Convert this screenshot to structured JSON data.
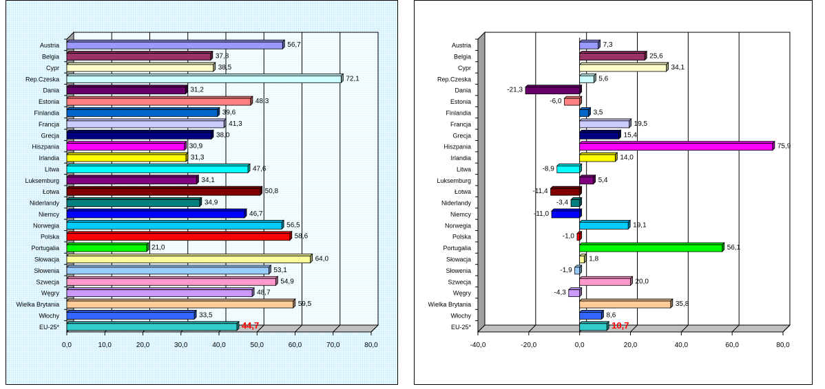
{
  "chart_data": [
    {
      "type": "bar",
      "orientation": "horizontal",
      "style": "3d",
      "categories": [
        "Austria",
        "Belgia",
        "Cypr",
        "Rep.Czeska",
        "Dania",
        "Estonia",
        "Finlandia",
        "Francja",
        "Grecja",
        "Hiszpania",
        "Irlandia",
        "Litwa",
        "Luksemburg",
        "Łotwa",
        "Niderlandy",
        "Niemcy",
        "Norwegia",
        "Polska",
        "Portugalia",
        "Słowacja",
        "Słowenia",
        "Szwecja",
        "Węgry",
        "Wielka Brytania",
        "Włochy",
        "EU-25*"
      ],
      "values": [
        56.7,
        37.8,
        38.5,
        72.1,
        31.2,
        48.3,
        39.6,
        41.3,
        38.0,
        30.9,
        31.3,
        47.6,
        34.1,
        50.8,
        34.9,
        46.7,
        56.5,
        58.6,
        21.0,
        64.0,
        53.1,
        54.9,
        48.7,
        59.5,
        33.5,
        44.7
      ],
      "value_labels": [
        "56,7",
        "37,8",
        "38,5",
        "72,1",
        "31,2",
        "48,3",
        "39,6",
        "41,3",
        "38,0",
        "30,9",
        "31,3",
        "47,6",
        "34,1",
        "50,8",
        "34,9",
        "46,7",
        "56,5",
        "58,6",
        "21,0",
        "64,0",
        "53,1",
        "54,9",
        "48,7",
        "59,5",
        "33,5",
        "44,7"
      ],
      "xlim": [
        0,
        80
      ],
      "xticks": [
        "0,0",
        "10,0",
        "20,0",
        "30,0",
        "40,0",
        "50,0",
        "60,0",
        "70,0",
        "80,0"
      ],
      "grid": true,
      "highlight_category": "EU-25*",
      "highlight_color": "#ff0000"
    },
    {
      "type": "bar",
      "orientation": "horizontal",
      "style": "3d",
      "categories": [
        "Austria",
        "Belgia",
        "Cypr",
        "Rep.Czeska",
        "Dania",
        "Estonia",
        "Finlandia",
        "Francja",
        "Grecja",
        "Hiszpania",
        "Irlandia",
        "Litwa",
        "Luksemburg",
        "Łotwa",
        "Niderlandy",
        "Niemcy",
        "Norwegia",
        "Polska",
        "Portugalia",
        "Słowacja",
        "Słowenia",
        "Szwecja",
        "Węgry",
        "Wielka Brytania",
        "Włochy",
        "EU-25*"
      ],
      "values": [
        7.3,
        25.6,
        34.1,
        5.6,
        -21.3,
        -6.0,
        3.5,
        19.5,
        15.4,
        75.9,
        14.0,
        -8.9,
        5.4,
        -11.4,
        -3.4,
        -11.0,
        19.1,
        -1.0,
        56.1,
        1.8,
        -1.9,
        20.0,
        -4.3,
        35.8,
        8.6,
        10.7
      ],
      "value_labels": [
        "7,3",
        "25,6",
        "34,1",
        "5,6",
        "-21,3",
        "-6,0",
        "3,5",
        "19,5",
        "15,4",
        "75,9",
        "14,0",
        "-8,9",
        "5,4",
        "-11,4",
        "-3,4",
        "-11,0",
        "19,1",
        "-1,0",
        "56,1",
        "1,8",
        "-1,9",
        "20,0",
        "-4,3",
        "35,8",
        "8,6",
        "10,7"
      ],
      "xlim": [
        -40,
        80
      ],
      "xticks": [
        "-40,0",
        "-20,0",
        "0,0",
        "20,0",
        "40,0",
        "60,0",
        "80,0"
      ],
      "grid": true,
      "highlight_category": "EU-25*",
      "highlight_color": "#ff0000"
    }
  ],
  "colors": [
    "#9999ff",
    "#993366",
    "#ffffcc",
    "#ccffff",
    "#660066",
    "#ff8080",
    "#0066cc",
    "#ccccff",
    "#000080",
    "#ff00ff",
    "#ffff00",
    "#00ffff",
    "#800080",
    "#800000",
    "#008080",
    "#0000ff",
    "#00ccff",
    "#ff0000",
    "#00ff00",
    "#ffff99",
    "#99ccff",
    "#ff99cc",
    "#cc99ff",
    "#ffcc99",
    "#3366ff",
    "#33cccc"
  ]
}
